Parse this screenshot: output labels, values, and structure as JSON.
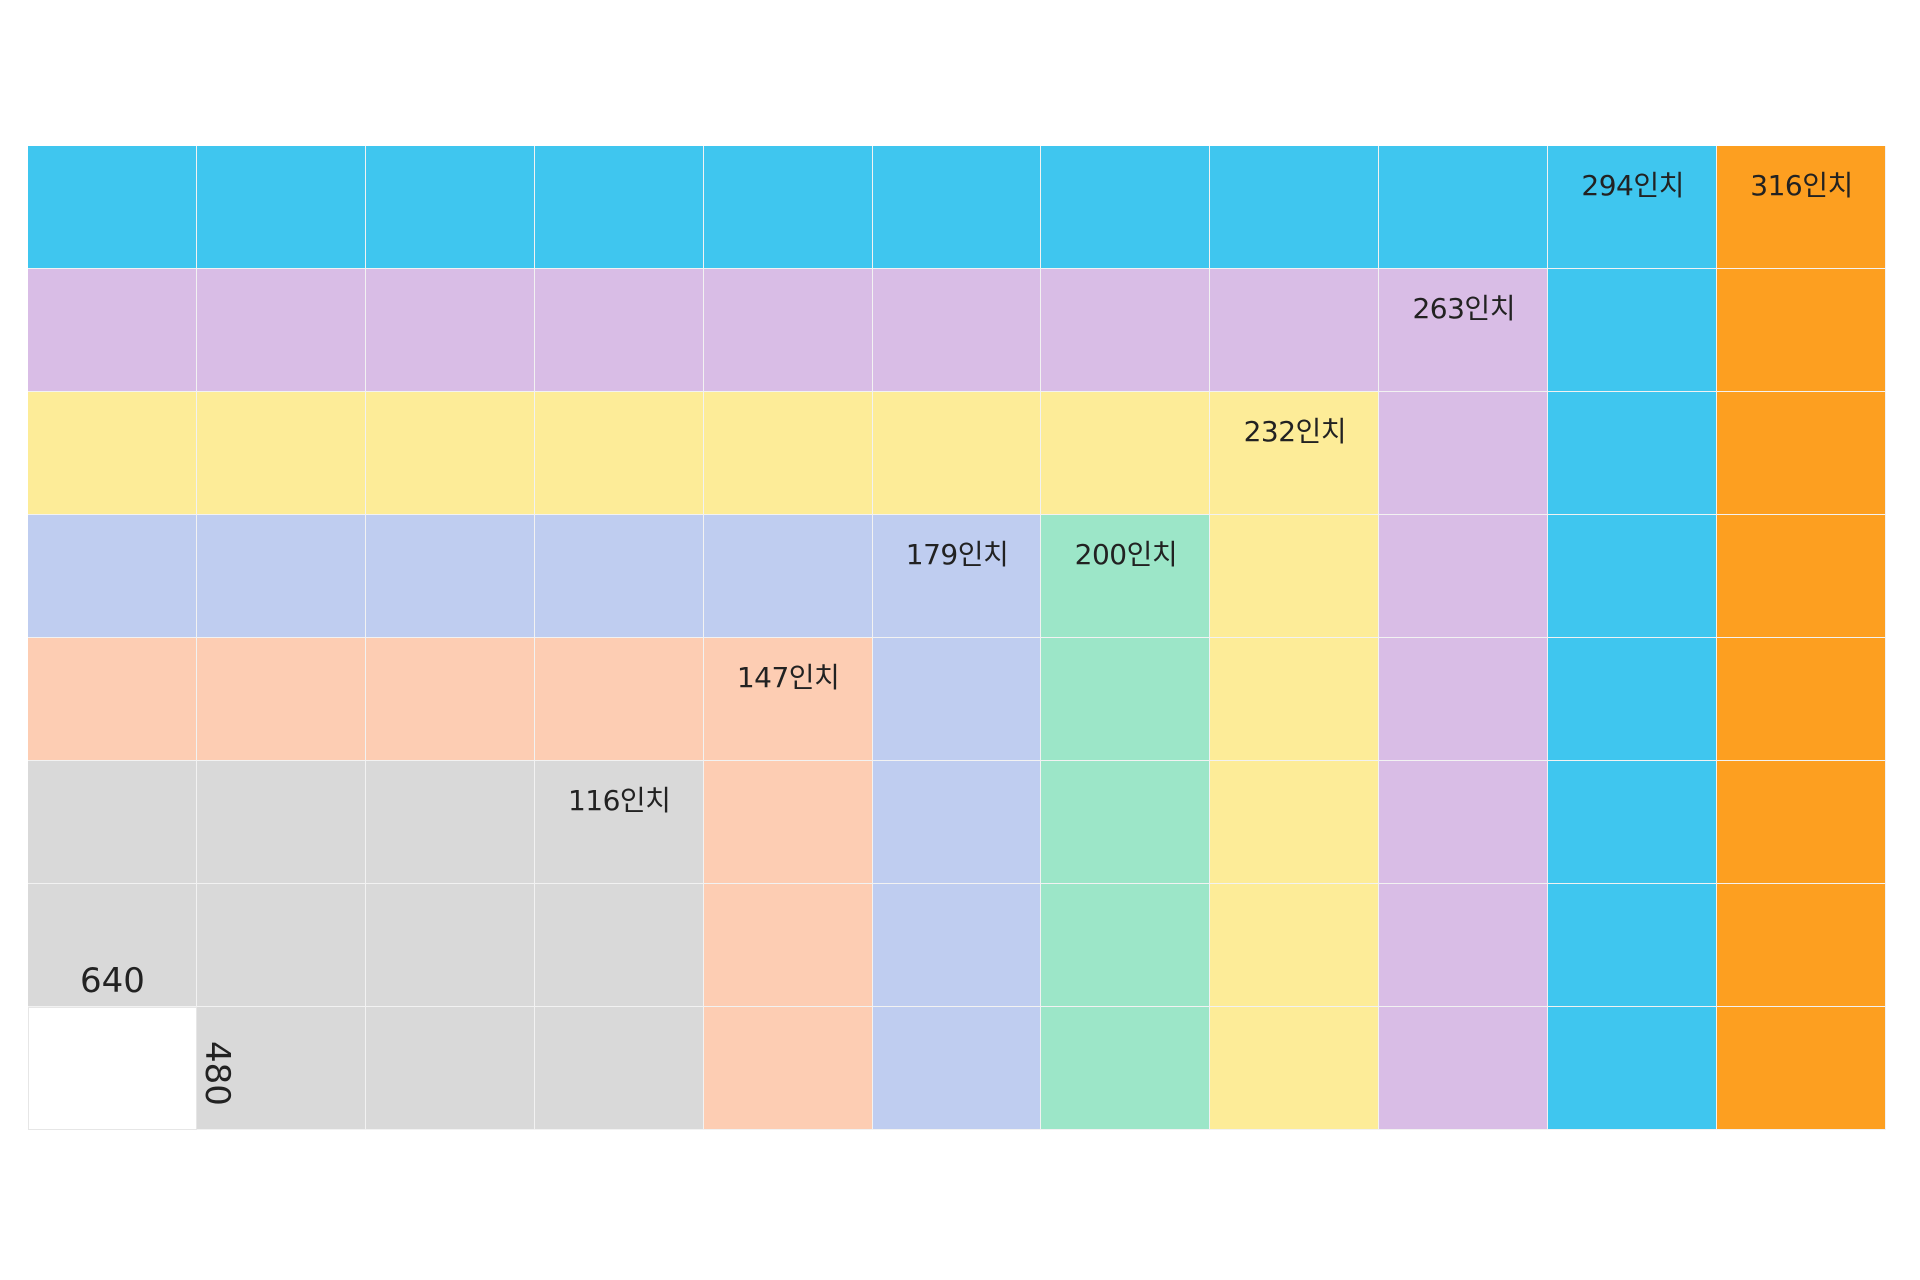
{
  "grid": {
    "columns": 11,
    "rows": 8
  },
  "resolution": {
    "width": "640",
    "height": "480"
  },
  "sizes": [
    {
      "label": "116인치",
      "cols": 4,
      "rows": 3,
      "color": "#d9d9d9"
    },
    {
      "label": "147인치",
      "cols": 5,
      "rows": 4,
      "color": "#fdcdb3"
    },
    {
      "label": "179인치",
      "cols": 6,
      "rows": 5,
      "color": "#bfcdf0"
    },
    {
      "label": "200인치",
      "cols": 7,
      "rows": 5,
      "color": "#9ce6c8"
    },
    {
      "label": "232인치",
      "cols": 8,
      "rows": 6,
      "color": "#fdec98"
    },
    {
      "label": "263인치",
      "cols": 9,
      "rows": 7,
      "color": "#d9bde6"
    },
    {
      "label": "294인치",
      "cols": 10,
      "rows": 8,
      "color": "#3fc6ef"
    },
    {
      "label": "316인치",
      "cols": 11,
      "rows": 8,
      "color": "#fd9f20"
    }
  ]
}
